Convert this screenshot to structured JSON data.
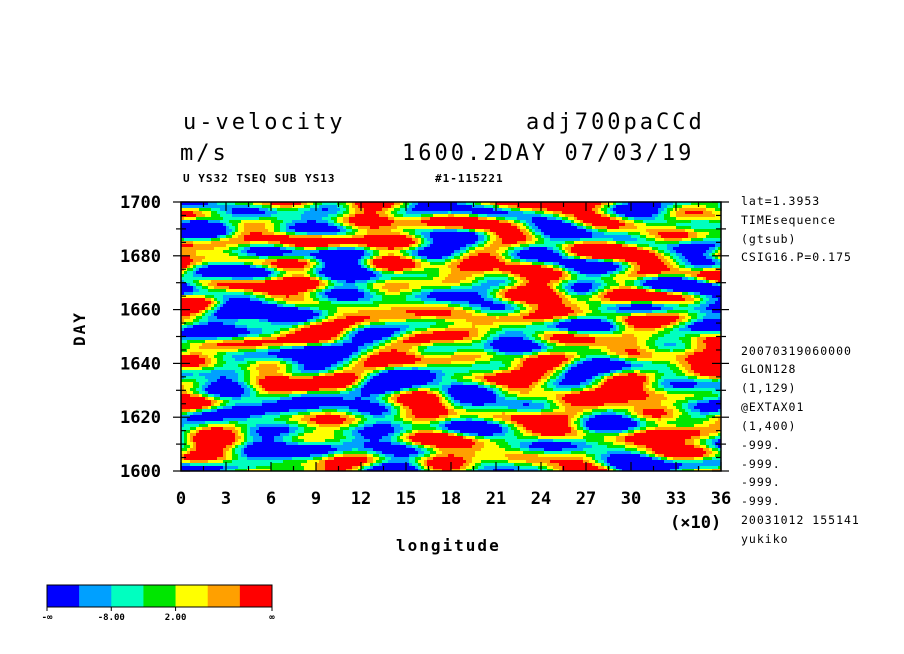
{
  "header": {
    "variable": "u-velocity",
    "experiment": "adj700paCCd",
    "units": "m/s",
    "time": "1600.2DAY 07/03/19",
    "subtitle": "U YS32 TSEQ SUB YS13",
    "id": "#1-115221"
  },
  "side_info": [
    "lat=1.3953",
    "TIMEsequence",
    "(gtsub)",
    "CSIG16.P=0.175",
    "20070319060000",
    "GLON128",
    "(1,129)",
    "@EXTAX01",
    "(1,400)",
    "-999.",
    "-999.",
    "-999.",
    "-999.",
    "20031012 155141",
    "yukiko"
  ],
  "chart_data": {
    "type": "heatmap",
    "title": "u-velocity",
    "xlabel": "longitude",
    "x_unit": "(×10)",
    "ylabel": "DAY",
    "xlim": [
      0,
      36
    ],
    "ylim": [
      1600,
      1700
    ],
    "x_ticks": [
      "0",
      "3",
      "6",
      "9",
      "12",
      "15",
      "18",
      "21",
      "24",
      "27",
      "30",
      "33",
      "36"
    ],
    "y_ticks": [
      "1600",
      "1620",
      "1640",
      "1660",
      "1680",
      "1700"
    ],
    "colorbar": {
      "colors": [
        "#0000ff",
        "#00a0ff",
        "#00ffc0",
        "#00e600",
        "#ffff00",
        "#ffa000",
        "#ff0000"
      ],
      "labels": [
        "-∞",
        "-8.00",
        "2.00",
        "∞"
      ]
    }
  }
}
